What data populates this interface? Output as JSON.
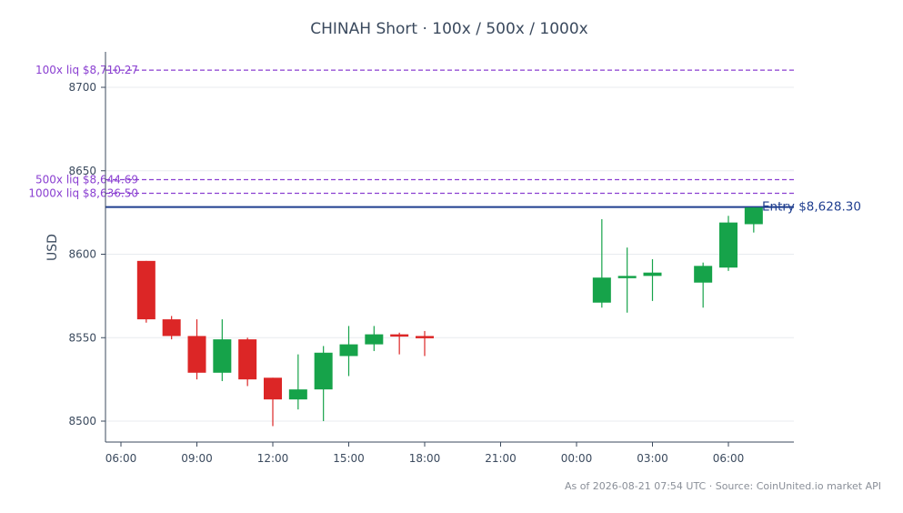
{
  "chart_data": {
    "type": "candlestick",
    "title": "CHINAH Short · 100x / 500x / 1000x",
    "ylabel": "USD",
    "xlabel": "",
    "ylim": [
      8488,
      8705
    ],
    "yticks": [
      8500,
      8550,
      8600,
      8650,
      8700
    ],
    "xticks": [
      {
        "label": "06:00",
        "hour": 6
      },
      {
        "label": "09:00",
        "hour": 9
      },
      {
        "label": "12:00",
        "hour": 12
      },
      {
        "label": "15:00",
        "hour": 15
      },
      {
        "label": "18:00",
        "hour": 18
      },
      {
        "label": "21:00",
        "hour": 21
      },
      {
        "label": "00:00",
        "hour": 24
      },
      {
        "label": "03:00",
        "hour": 27
      },
      {
        "label": "06:00",
        "hour": 30
      }
    ],
    "grid": true,
    "colors": {
      "up": "#16a34a",
      "down": "#dc2626",
      "liq": "#8a3fd1",
      "entry": "#1f3e8f"
    },
    "candles": [
      {
        "hour": 7,
        "open": 8596,
        "high": 8596,
        "low": 8559,
        "close": 8561
      },
      {
        "hour": 8,
        "open": 8561,
        "high": 8563,
        "low": 8549,
        "close": 8551
      },
      {
        "hour": 9,
        "open": 8551,
        "high": 8561,
        "low": 8525,
        "close": 8529
      },
      {
        "hour": 10,
        "open": 8529,
        "high": 8561,
        "low": 8524,
        "close": 8549
      },
      {
        "hour": 11,
        "open": 8549,
        "high": 8550,
        "low": 8521,
        "close": 8525
      },
      {
        "hour": 12,
        "open": 8526,
        "high": 8526,
        "low": 8497,
        "close": 8513
      },
      {
        "hour": 13,
        "open": 8513,
        "high": 8540,
        "low": 8507,
        "close": 8519
      },
      {
        "hour": 14,
        "open": 8519,
        "high": 8545,
        "low": 8500,
        "close": 8541
      },
      {
        "hour": 15,
        "open": 8539,
        "high": 8557,
        "low": 8527,
        "close": 8546
      },
      {
        "hour": 16,
        "open": 8546,
        "high": 8557,
        "low": 8542,
        "close": 8552
      },
      {
        "hour": 17,
        "open": 8552,
        "high": 8553,
        "low": 8540,
        "close": 8551
      },
      {
        "hour": 18,
        "open": 8551,
        "high": 8554,
        "low": 8539,
        "close": 8550
      },
      {
        "hour": 25,
        "open": 8571,
        "high": 8621,
        "low": 8568,
        "close": 8586
      },
      {
        "hour": 26,
        "open": 8586,
        "high": 8604,
        "low": 8565,
        "close": 8587
      },
      {
        "hour": 27,
        "open": 8587,
        "high": 8597,
        "low": 8572,
        "close": 8589
      },
      {
        "hour": 29,
        "open": 8583,
        "high": 8595,
        "low": 8568,
        "close": 8593
      },
      {
        "hour": 30,
        "open": 8592,
        "high": 8623,
        "low": 8590,
        "close": 8619
      },
      {
        "hour": 31,
        "open": 8618,
        "high": 8628,
        "low": 8613,
        "close": 8628
      }
    ],
    "levels": [
      {
        "label": "100x liq $8,710.27",
        "value": 8710.27,
        "kind": "liq"
      },
      {
        "label": "500x liq $8,644.69",
        "value": 8644.69,
        "kind": "liq"
      },
      {
        "label": "1000x liq $8,636.50",
        "value": 8636.5,
        "kind": "liq"
      },
      {
        "label": "Entry $8,628.30",
        "value": 8628.3,
        "kind": "entry"
      }
    ]
  },
  "footer": "As of 2026-08-21 07:54 UTC · Source: CoinUnited.io market API"
}
